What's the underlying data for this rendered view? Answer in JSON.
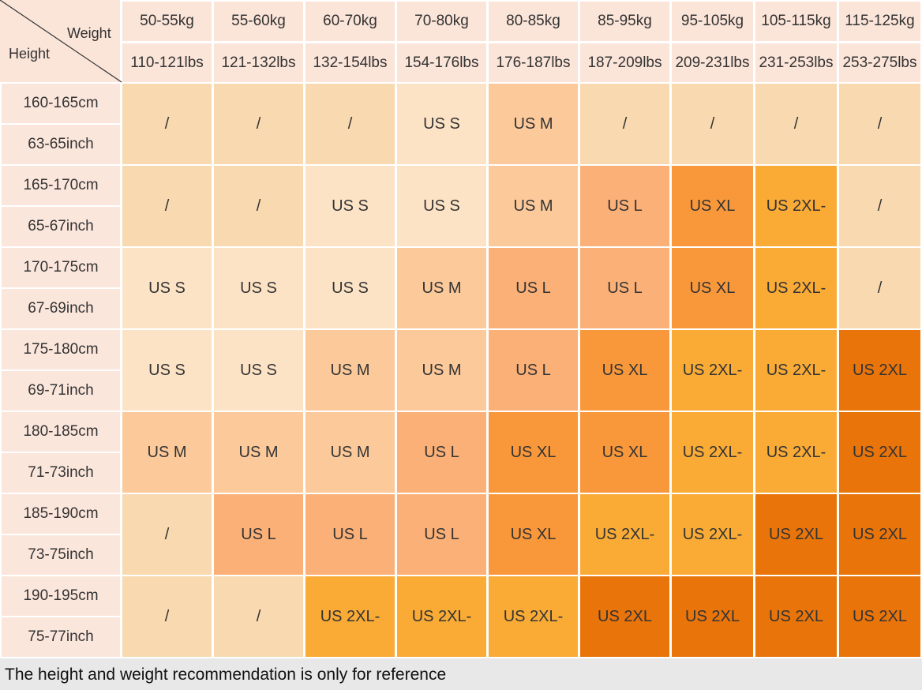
{
  "corner": {
    "weight": "Weight",
    "height": "Height"
  },
  "columns": [
    {
      "kg": "50-55kg",
      "lbs": "110-121lbs"
    },
    {
      "kg": "55-60kg",
      "lbs": "121-132lbs"
    },
    {
      "kg": "60-70kg",
      "lbs": "132-154lbs"
    },
    {
      "kg": "70-80kg",
      "lbs": "154-176lbs"
    },
    {
      "kg": "80-85kg",
      "lbs": "176-187lbs"
    },
    {
      "kg": "85-95kg",
      "lbs": "187-209lbs"
    },
    {
      "kg": "95-105kg",
      "lbs": "209-231lbs"
    },
    {
      "kg": "105-115kg",
      "lbs": "231-253lbs"
    },
    {
      "kg": "115-125kg",
      "lbs": "253-275lbs"
    }
  ],
  "rows": [
    {
      "cm": "160-165cm",
      "inch": "63-65inch",
      "cells": [
        "/",
        "/",
        "/",
        "US S",
        "US M",
        "/",
        "/",
        "/",
        "/"
      ]
    },
    {
      "cm": "165-170cm",
      "inch": "65-67inch",
      "cells": [
        "/",
        "/",
        "US S",
        "US S",
        "US M",
        "US L",
        "US XL",
        "US 2XL-",
        "/"
      ]
    },
    {
      "cm": "170-175cm",
      "inch": "67-69inch",
      "cells": [
        "US S",
        "US S",
        "US S",
        "US M",
        "US L",
        "US L",
        "US XL",
        "US 2XL-",
        "/"
      ]
    },
    {
      "cm": "175-180cm",
      "inch": "69-71inch",
      "cells": [
        "US S",
        "US S",
        "US M",
        "US M",
        "US L",
        "US XL",
        "US 2XL-",
        "US 2XL-",
        "US 2XL"
      ]
    },
    {
      "cm": "180-185cm",
      "inch": "71-73inch",
      "cells": [
        "US M",
        "US M",
        "US M",
        "US L",
        "US XL",
        "US XL",
        "US 2XL-",
        "US 2XL-",
        "US 2XL"
      ]
    },
    {
      "cm": "185-190cm",
      "inch": "73-75inch",
      "cells": [
        "/",
        "US L",
        "US L",
        "US L",
        "US XL",
        "US 2XL-",
        "US 2XL-",
        "US 2XL",
        "US 2XL"
      ]
    },
    {
      "cm": "190-195cm",
      "inch": "75-77inch",
      "cells": [
        "/",
        "/",
        "US 2XL-",
        "US 2XL-",
        "US 2XL-",
        "US 2XL",
        "US 2XL",
        "US 2XL",
        "US 2XL"
      ]
    }
  ],
  "colors": {
    "/": "#f8d9b0",
    "US S": "#fde3c6",
    "US M": "#fcc99a",
    "US L": "#fbb077",
    "US XL": "#f9983a",
    "US 2XL-": "#f9ab36",
    "US 2XL": "#e8740a"
  },
  "footer": "The height and weight recommendation is only for reference"
}
